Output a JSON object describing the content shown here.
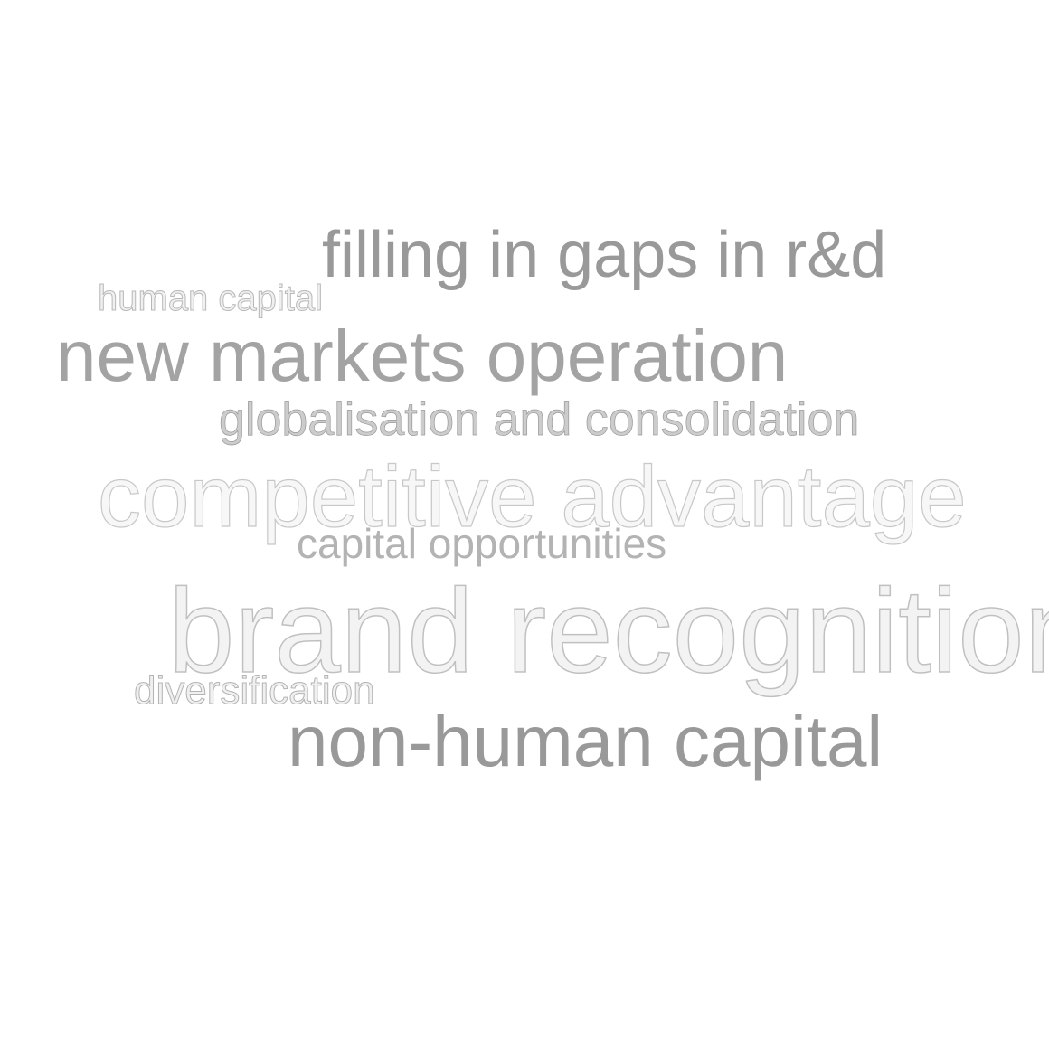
{
  "word_cloud": {
    "words": [
      {
        "text": "filling in gaps in r&d",
        "color": "#999999"
      },
      {
        "text": "human capital",
        "color": "#f0f0f0"
      },
      {
        "text": "new markets operation",
        "color": "#a3a3a3"
      },
      {
        "text": "globalisation and consolidation",
        "color": "#cccccc"
      },
      {
        "text": "competitive advantage",
        "color": "#f7f7f7"
      },
      {
        "text": "capital opportunities",
        "color": "#b3b3b3"
      },
      {
        "text": "brand recognition",
        "color": "#f3f3f3"
      },
      {
        "text": "diversification",
        "color": "#f0f0f0"
      },
      {
        "text": "non-human capital",
        "color": "#999999"
      }
    ]
  }
}
